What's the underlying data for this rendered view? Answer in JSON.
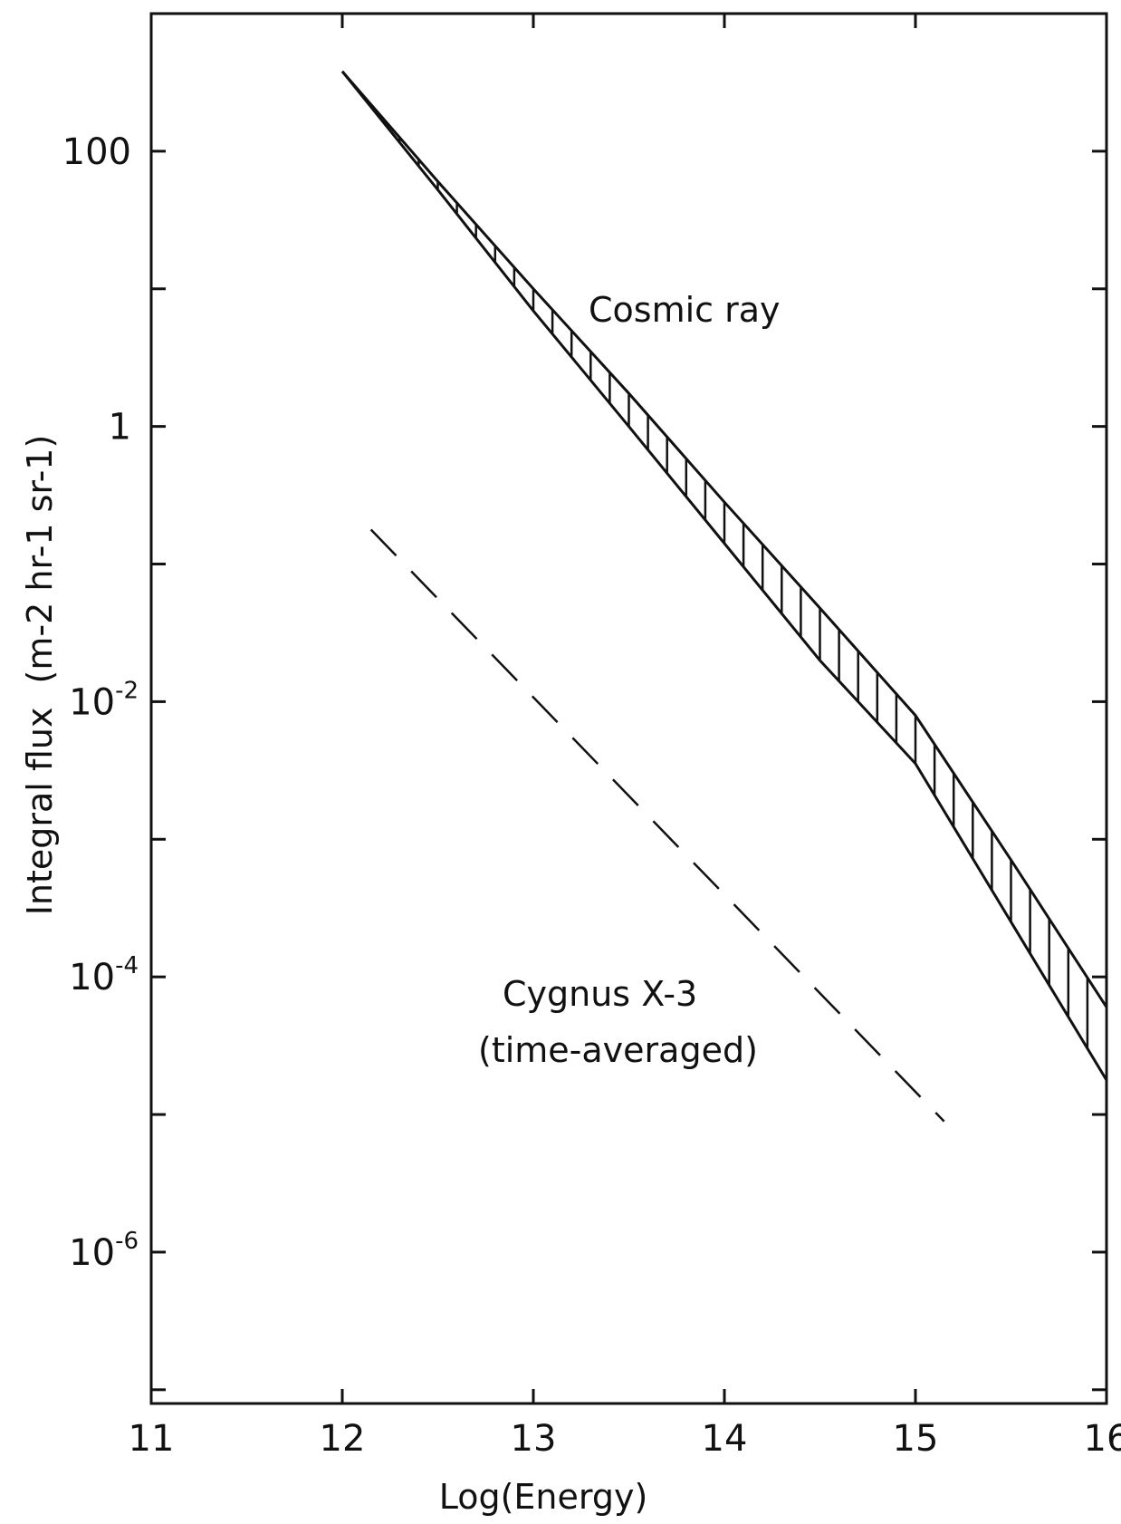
{
  "chart_data": {
    "type": "line",
    "title": "",
    "xlabel": "Log(Energy)",
    "ylabel": "Integral flux",
    "ylabel_units": "(m-2 hr-1 sr-1)",
    "y_scale": "log",
    "xlim": [
      11,
      16
    ],
    "ylim_log10": [
      -7.1,
      3.0
    ],
    "x_ticks": [
      "11",
      "12",
      "13",
      "14",
      "15",
      "16"
    ],
    "y_ticks": [
      {
        "base": "100",
        "exp": ""
      },
      {
        "base": "1",
        "exp": ""
      },
      {
        "base": "10",
        "exp": "-2"
      },
      {
        "base": "10",
        "exp": "-4"
      },
      {
        "base": "10",
        "exp": "-6"
      }
    ],
    "grid": false,
    "series": [
      {
        "name": "Cosmic ray",
        "style": "hatched-band",
        "x": [
          12.0,
          12.5,
          13.0,
          13.5,
          14.0,
          14.5,
          15.0,
          15.5,
          16.0
        ],
        "upper_log10": [
          2.58,
          1.78,
          1.0,
          0.24,
          -0.55,
          -1.32,
          -2.1,
          -3.15,
          -4.22
        ],
        "lower_log10": [
          2.58,
          1.72,
          0.84,
          0.0,
          -0.85,
          -1.7,
          -2.45,
          -3.6,
          -4.75
        ]
      },
      {
        "name": "Cygnus X-3 (time-averaged)",
        "style": "dashed",
        "x": [
          12.15,
          15.15
        ],
        "y_log10": [
          -0.75,
          -5.05
        ]
      }
    ],
    "annotations": [
      {
        "text": "Cosmic ray"
      },
      {
        "text": "Cygnus X-3"
      },
      {
        "text": "(time-averaged)"
      }
    ]
  }
}
